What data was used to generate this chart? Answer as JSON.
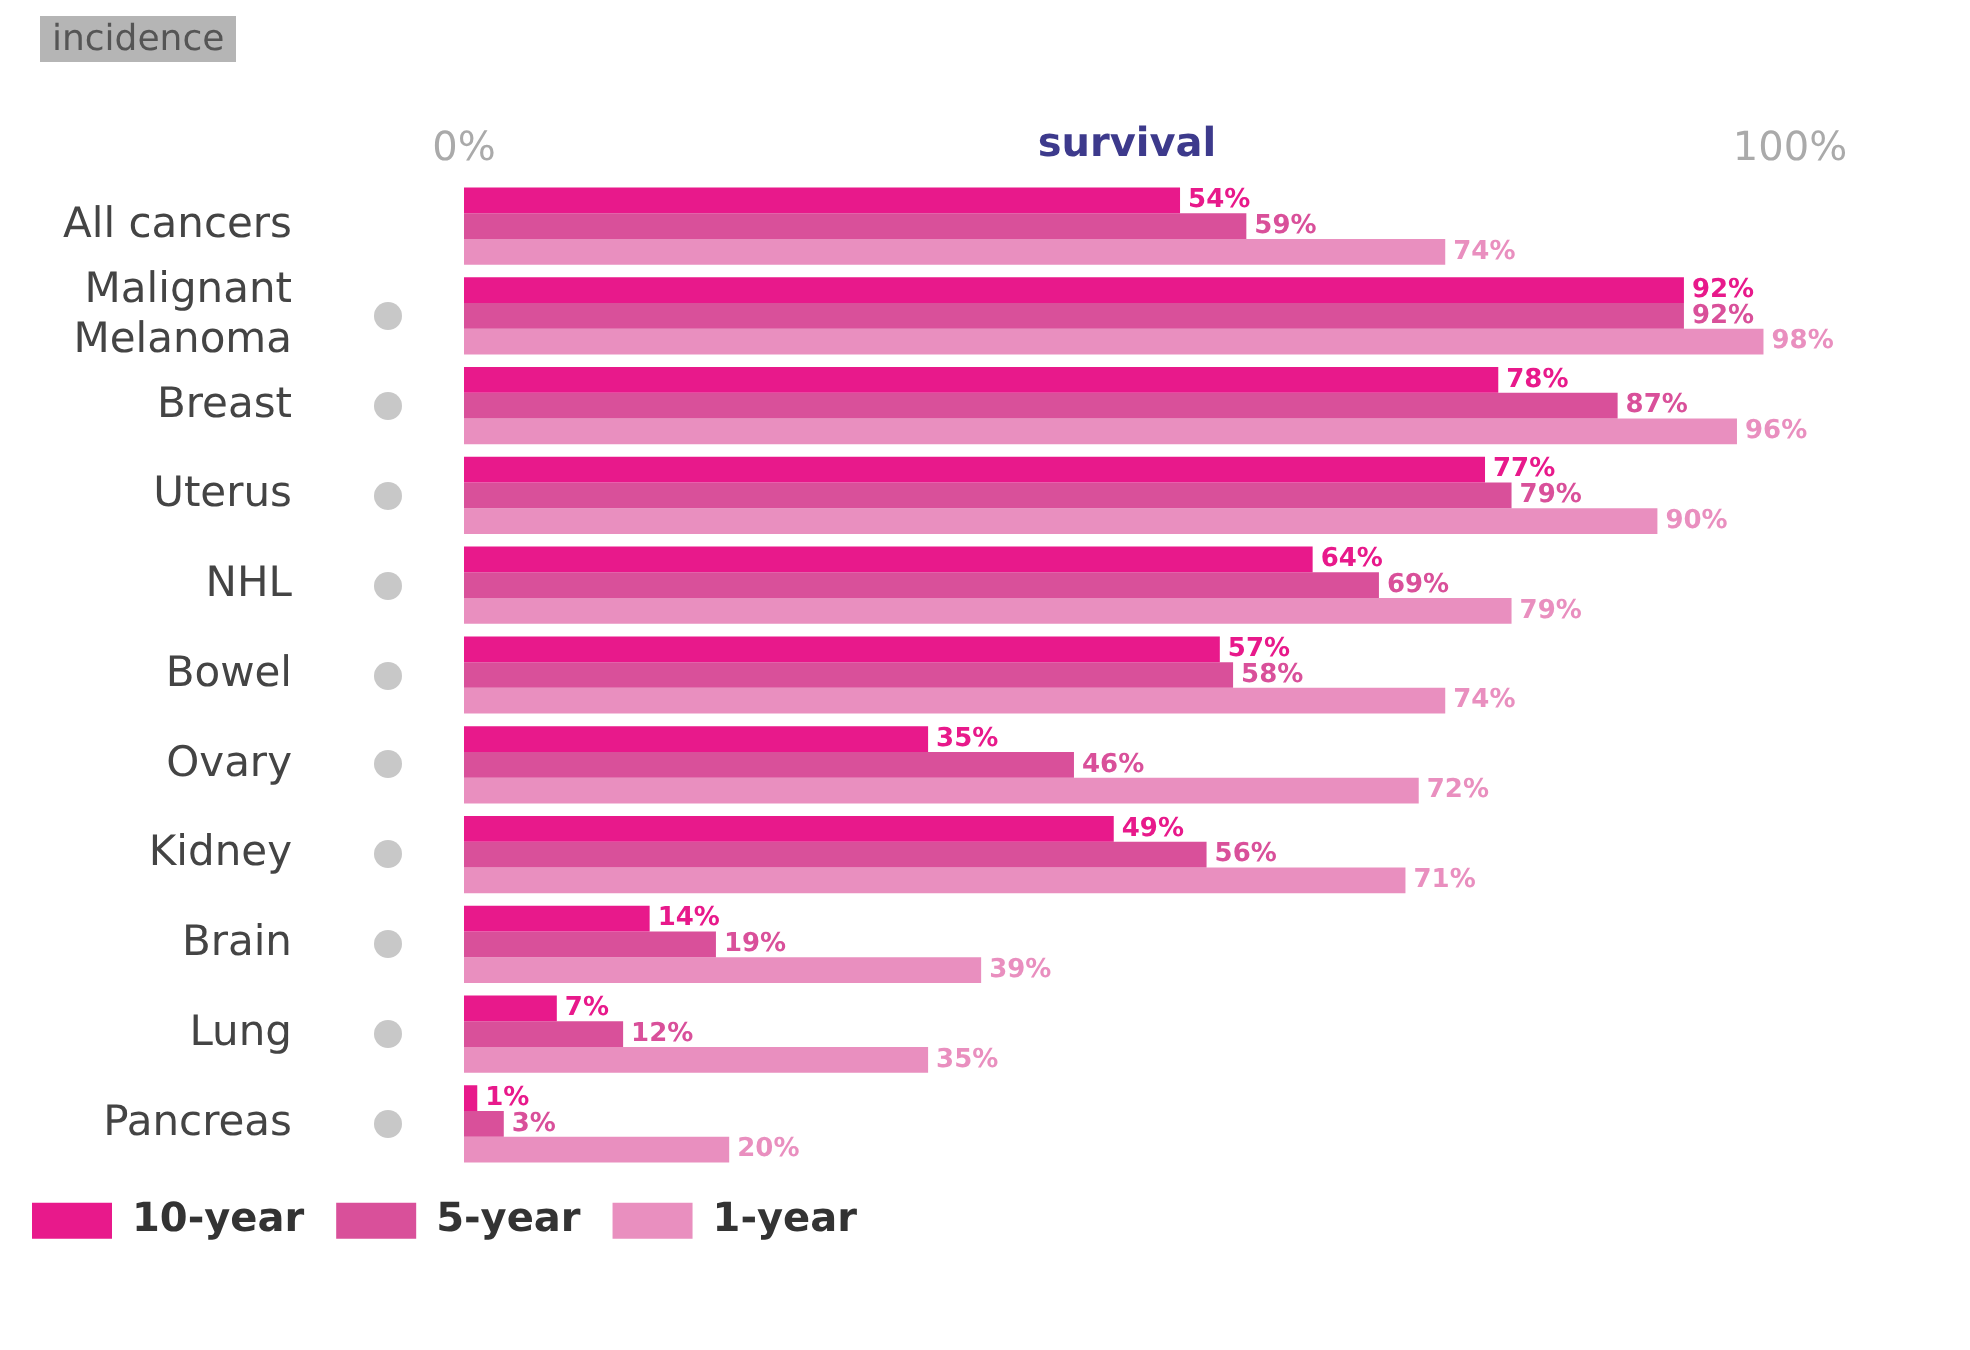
{
  "chart_data": {
    "type": "bar",
    "orientation": "horizontal",
    "categories": [
      "All cancers",
      "Malignant Melanoma",
      "Breast",
      "Uterus",
      "NHL",
      "Bowel",
      "Ovary",
      "Kidney",
      "Brain",
      "Lung",
      "Pancreas"
    ],
    "xlim": [
      0,
      100
    ],
    "xticks": [
      {
        "value": 0,
        "label": "0%"
      },
      {
        "value": 100,
        "label": "100%"
      }
    ],
    "xlabel": "survival",
    "annotations": [
      "incidence"
    ],
    "grid": false,
    "legend": "bottom",
    "series": [
      {
        "name": "10-year",
        "color": "#e8198b",
        "values": [
          54,
          92,
          78,
          77,
          64,
          57,
          35,
          49,
          14,
          7,
          1
        ],
        "value_labels": [
          "54%",
          "92%",
          "78%",
          "77%",
          "64%",
          "57%",
          "35%",
          "49%",
          "14%",
          "7%",
          "1%"
        ]
      },
      {
        "name": "5-year",
        "color": "#d9509a",
        "values": [
          59,
          92,
          87,
          79,
          69,
          58,
          46,
          56,
          19,
          12,
          3
        ],
        "value_labels": [
          "59%",
          "92%",
          "87%",
          "79%",
          "69%",
          "58%",
          "46%",
          "56%",
          "19%",
          "12%",
          "3%"
        ]
      },
      {
        "name": "1-year",
        "color": "#e98fbf",
        "values": [
          74,
          98,
          96,
          90,
          79,
          74,
          72,
          71,
          39,
          35,
          20
        ],
        "value_labels": [
          "74%",
          "98%",
          "96%",
          "90%",
          "79%",
          "74%",
          "72%",
          "71%",
          "39%",
          "35%",
          "20%"
        ]
      }
    ]
  }
}
